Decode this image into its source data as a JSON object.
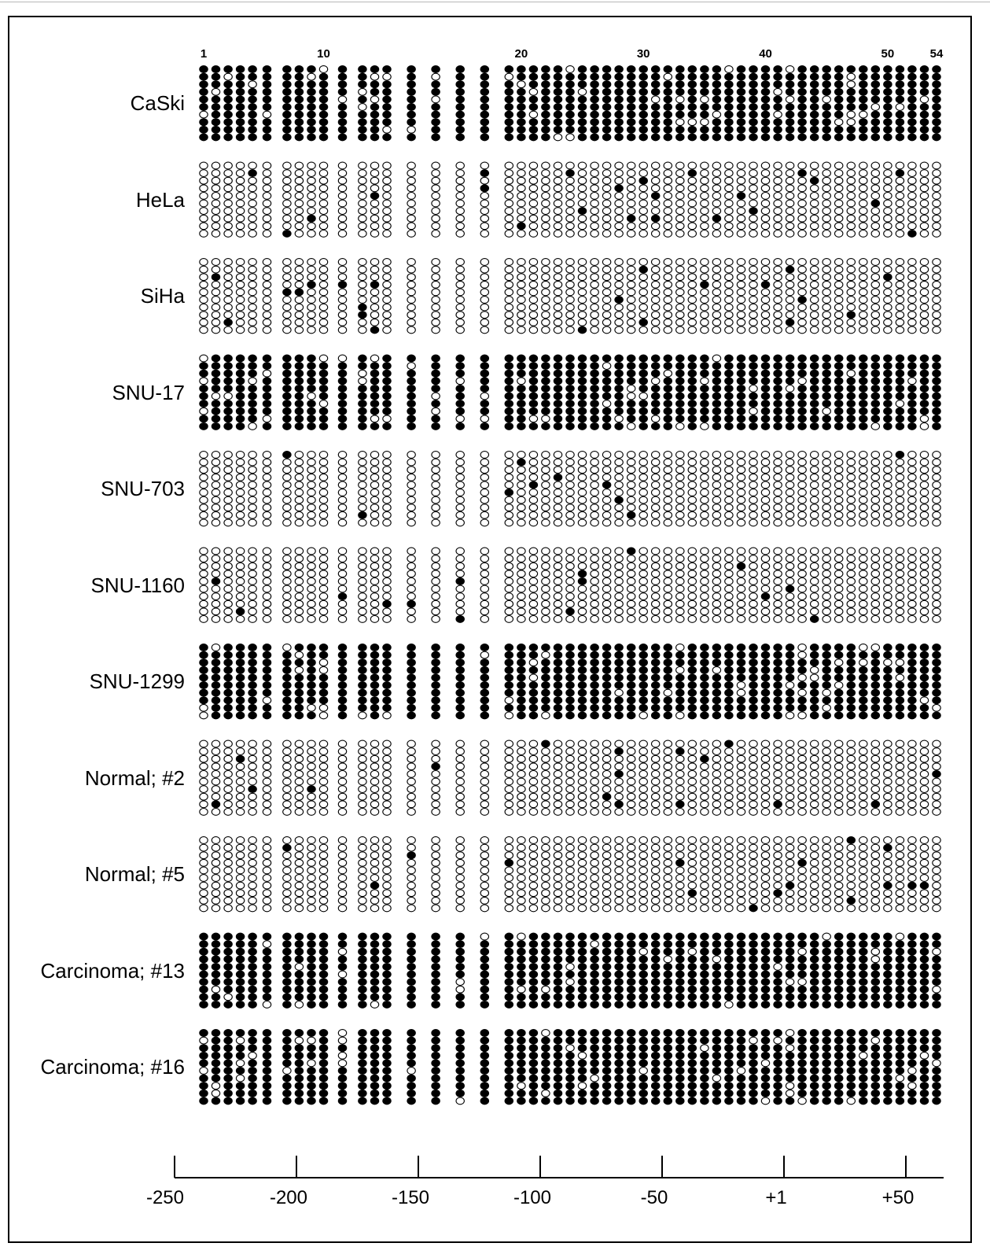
{
  "colors": {
    "methylated": "#000000",
    "unmethylated": "#ffffff",
    "outline": "#000000",
    "border": "#000000"
  },
  "cpg": {
    "total": 54,
    "site_labels": [
      "1",
      "10",
      "20",
      "30",
      "40",
      "50",
      "54"
    ],
    "labelled_sites": [
      1,
      10,
      20,
      30,
      40,
      50,
      54
    ]
  },
  "axis": {
    "tick_labels": [
      "-250",
      "-200",
      "-150",
      "-100",
      "-50",
      "+1",
      "+50"
    ]
  },
  "samples": [
    {
      "label": "CaSki",
      "clones": 10,
      "methylated": true
    },
    {
      "label": "HeLa",
      "clones": 10,
      "methylated": false
    },
    {
      "label": "SiHa",
      "clones": 10,
      "methylated": false
    },
    {
      "label": "SNU-17",
      "clones": 10,
      "methylated": true
    },
    {
      "label": "SNU-703",
      "clones": 10,
      "methylated": false
    },
    {
      "label": "SNU-1160",
      "clones": 10,
      "methylated": false
    },
    {
      "label": "SNU-1299",
      "clones": 10,
      "methylated": true
    },
    {
      "label": "Normal; #2",
      "clones": 10,
      "methylated": false
    },
    {
      "label": "Normal; #5",
      "clones": 10,
      "methylated": false
    },
    {
      "label": "Carcinoma; #13",
      "clones": 10,
      "methylated": true
    },
    {
      "label": "Carcinoma; #16",
      "clones": 10,
      "methylated": true
    }
  ]
}
